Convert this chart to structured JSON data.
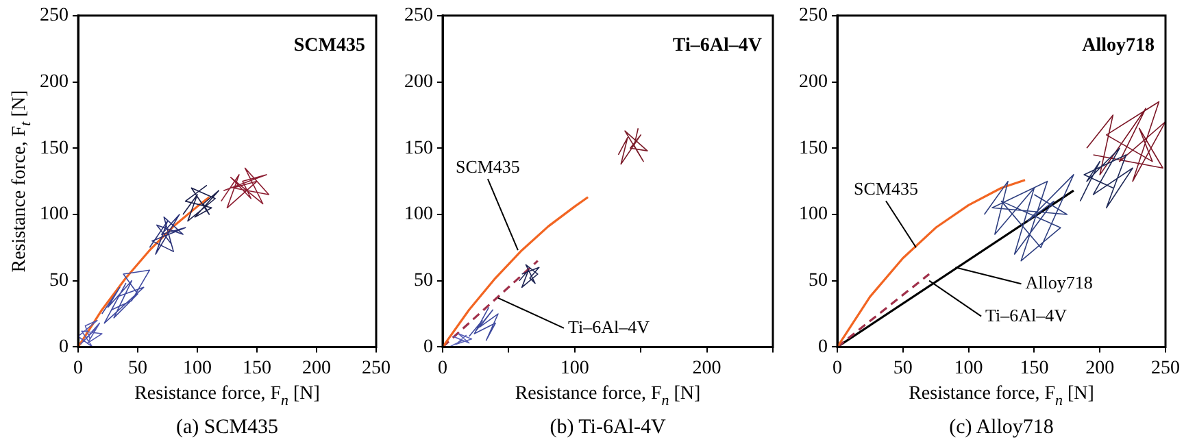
{
  "chart_data": [
    {
      "type": "line",
      "title": "SCM435",
      "subtitle": "(a) SCM435",
      "xlabel": "Resistance force, F$_{n}$ [N]",
      "ylabel": "Resistance force, F$_{t}$ [N]",
      "xlim": [
        0,
        250
      ],
      "ylim": [
        0,
        250
      ],
      "xticks": [
        0,
        50,
        100,
        150,
        200,
        250
      ],
      "yticks": [
        0,
        50,
        100,
        150,
        200,
        250
      ],
      "grid": false,
      "legend": false,
      "marker": "none",
      "series": [
        {
          "color": "#5257b0",
          "x": [
            2,
            15,
            5,
            18,
            8,
            20,
            3,
            12,
            0,
            16,
            6,
            10
          ],
          "values": [
            2,
            14,
            5,
            18,
            3,
            10,
            12,
            0,
            8,
            20,
            16,
            6
          ]
        },
        {
          "color": "#3f4aa0",
          "x": [
            20,
            35,
            25,
            45,
            30,
            50,
            38,
            60,
            45,
            28,
            40,
            22,
            55,
            33
          ],
          "values": [
            25,
            45,
            30,
            50,
            22,
            40,
            55,
            58,
            35,
            28,
            48,
            18,
            45,
            38
          ]
        },
        {
          "color": "#2a3278",
          "x": [
            60,
            75,
            65,
            85,
            70,
            90,
            62,
            80,
            72,
            88,
            66,
            78
          ],
          "values": [
            75,
            95,
            70,
            100,
            85,
            90,
            80,
            72,
            98,
            85,
            92,
            78
          ]
        },
        {
          "color": "#1a1f4a",
          "x": [
            88,
            100,
            92,
            115,
            95,
            110,
            105,
            118,
            98,
            112,
            90,
            108
          ],
          "values": [
            100,
            115,
            95,
            112,
            120,
            100,
            108,
            118,
            98,
            105,
            110,
            122
          ]
        },
        {
          "color": "#8c1c30",
          "x": [
            120,
            135,
            125,
            150,
            130,
            160,
            140,
            155,
            128,
            145,
            138,
            158,
            122
          ],
          "values": [
            110,
            130,
            105,
            125,
            120,
            115,
            135,
            108,
            128,
            112,
            125,
            130,
            118
          ]
        },
        {
          "color": "#f26522",
          "line_style": "solid",
          "x": [
            0,
            20,
            40,
            60,
            80,
            100,
            110
          ],
          "values": [
            0,
            28,
            52,
            73,
            91,
            106,
            113
          ]
        }
      ]
    },
    {
      "type": "line",
      "title": "Ti–6Al–4V",
      "subtitle": "(b) Ti-6Al-4V",
      "xlabel": "Resistance force, F$_{n}$ [N]",
      "xlim": [
        0,
        250
      ],
      "ylim": [
        0,
        250
      ],
      "xticks": [
        0,
        {
          "value": 50,
          "label": null
        },
        100,
        {
          "value": 150,
          "label": null
        },
        200,
        {
          "value": 250,
          "label": null
        }
      ],
      "yticks": [
        0,
        50,
        100,
        150,
        200,
        250
      ],
      "grid": false,
      "legend": false,
      "marker": "none",
      "series": [
        {
          "color": "#5a62b8",
          "x": [
            5,
            15,
            8,
            20,
            12,
            22,
            10,
            18
          ],
          "values": [
            0,
            5,
            8,
            3,
            10,
            6,
            2,
            9
          ]
        },
        {
          "color": "#3e4a9e",
          "x": [
            20,
            30,
            25,
            38,
            28,
            42,
            33,
            40,
            24,
            35
          ],
          "values": [
            8,
            20,
            12,
            28,
            15,
            25,
            5,
            18,
            10,
            30
          ]
        },
        {
          "color": "#1c2352",
          "x": [
            58,
            65,
            60,
            72,
            63,
            70,
            66,
            73,
            60
          ],
          "values": [
            50,
            58,
            45,
            55,
            62,
            48,
            52,
            60,
            55
          ]
        },
        {
          "color": "#7a1a28",
          "x": [
            133,
            140,
            135,
            150,
            142,
            155,
            138,
            152,
            145,
            148
          ],
          "values": [
            145,
            158,
            138,
            160,
            150,
            148,
            163,
            140,
            152,
            165
          ]
        },
        {
          "color": "#f26522",
          "line_style": "solid",
          "x": [
            0,
            20,
            40,
            60,
            80,
            100,
            110
          ],
          "values": [
            0,
            28,
            52,
            73,
            91,
            106,
            113
          ]
        },
        {
          "color": "#a0304a",
          "line_style": "dashed",
          "x": [
            0,
            72
          ],
          "values": [
            0,
            65
          ]
        }
      ],
      "annotations": [
        {
          "text": "SCM435",
          "x": 57,
          "y": 73
        },
        {
          "text": "Ti–6Al–4V",
          "x": 42,
          "y": 37
        }
      ]
    },
    {
      "type": "line",
      "title": "Alloy718",
      "subtitle": "(c) Alloy718",
      "xlabel": "Resistance force, F$_{n}$ [N]",
      "xlim": [
        0,
        250
      ],
      "ylim": [
        0,
        250
      ],
      "xticks": [
        0,
        50,
        100,
        150,
        200,
        250
      ],
      "yticks": [
        0,
        50,
        100,
        150,
        200,
        250
      ],
      "grid": false,
      "legend": false,
      "marker": "none",
      "series": [
        {
          "color": "#2e3f80",
          "x": [
            112,
            130,
            120,
            150,
            135,
            165,
            145,
            180,
            155,
            125,
            170,
            140,
            160,
            118,
            175,
            150
          ],
          "values": [
            100,
            125,
            85,
            120,
            70,
            110,
            95,
            130,
            75,
            110,
            90,
            65,
            125,
            105,
            100,
            115
          ]
        },
        {
          "color": "#1f2a58",
          "x": [
            185,
            200,
            190,
            215,
            195,
            225,
            205,
            220,
            188,
            210
          ],
          "values": [
            110,
            140,
            125,
            150,
            115,
            135,
            105,
            145,
            130,
            120
          ]
        },
        {
          "color": "#7c1626",
          "x": [
            190,
            210,
            200,
            235,
            215,
            250,
            225,
            245,
            205,
            240,
            230,
            248,
            195
          ],
          "values": [
            150,
            175,
            130,
            180,
            140,
            170,
            125,
            185,
            160,
            140,
            165,
            135,
            145
          ]
        },
        {
          "color": "#f26522",
          "line_style": "solid",
          "x": [
            0,
            25,
            50,
            75,
            100,
            125,
            143
          ],
          "values": [
            0,
            38,
            67,
            90,
            107,
            120,
            126
          ]
        },
        {
          "color": "#a0304a",
          "line_style": "dashed",
          "x": [
            0,
            70
          ],
          "values": [
            0,
            55
          ]
        },
        {
          "color": "#000000",
          "line_style": "solid",
          "x": [
            0,
            180
          ],
          "values": [
            0,
            118
          ]
        }
      ],
      "annotations": [
        {
          "text": "SCM435",
          "x": 60,
          "y": 75
        },
        {
          "text": "Alloy718",
          "x": 90,
          "y": 60
        },
        {
          "text": "Ti–6Al–4V",
          "x": 70,
          "y": 50
        }
      ]
    }
  ]
}
